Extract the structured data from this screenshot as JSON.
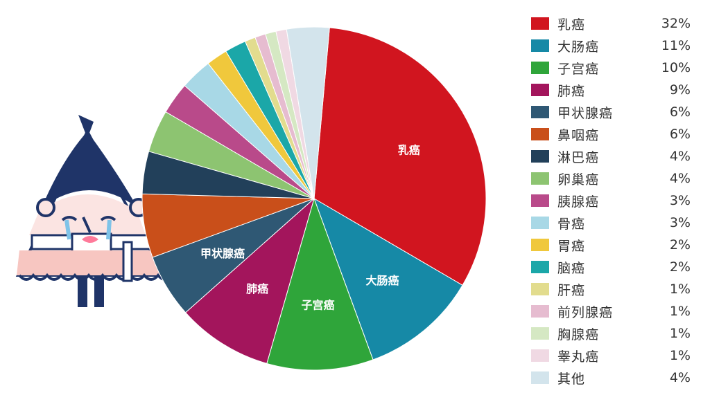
{
  "chart_data": {
    "type": "pie",
    "title": "",
    "slices": [
      {
        "label": "乳癌",
        "value": 32,
        "display": "32%",
        "color": "#d1151f",
        "show_label": true
      },
      {
        "label": "大肠癌",
        "value": 11,
        "display": "11%",
        "color": "#1689a6",
        "show_label": true
      },
      {
        "label": "子宫癌",
        "value": 10,
        "display": "10%",
        "color": "#2fa53a",
        "show_label": true
      },
      {
        "label": "肺癌",
        "value": 9,
        "display": "9%",
        "color": "#a3155c",
        "show_label": true
      },
      {
        "label": "甲状腺癌",
        "value": 6,
        "display": "6%",
        "color": "#2f5874",
        "show_label": true
      },
      {
        "label": "鼻咽癌",
        "value": 6,
        "display": "6%",
        "color": "#c94f1a",
        "show_label": false
      },
      {
        "label": "淋巴癌",
        "value": 4,
        "display": "4%",
        "color": "#22405a",
        "show_label": false
      },
      {
        "label": "卵巢癌",
        "value": 4,
        "display": "4%",
        "color": "#8dc471",
        "show_label": false
      },
      {
        "label": "胰腺癌",
        "value": 3,
        "display": "3%",
        "color": "#b94a8a",
        "show_label": false
      },
      {
        "label": "骨癌",
        "value": 3,
        "display": "3%",
        "color": "#a8d8e6",
        "show_label": false
      },
      {
        "label": "胃癌",
        "value": 2,
        "display": "2%",
        "color": "#f0c83c",
        "show_label": false
      },
      {
        "label": "脑癌",
        "value": 2,
        "display": "2%",
        "color": "#1ba7a8",
        "show_label": false
      },
      {
        "label": "肝癌",
        "value": 1,
        "display": "1%",
        "color": "#e2dc8e",
        "show_label": false
      },
      {
        "label": "前列腺癌",
        "value": 1,
        "display": "1%",
        "color": "#e6bcd0",
        "show_label": false
      },
      {
        "label": "胸腺癌",
        "value": 1,
        "display": "1%",
        "color": "#d5e8c3",
        "show_label": false
      },
      {
        "label": "睾丸癌",
        "value": 1,
        "display": "1%",
        "color": "#f0d9e3",
        "show_label": false
      },
      {
        "label": "其他",
        "value": 4,
        "display": "4%",
        "color": "#d3e4ec",
        "show_label": false
      }
    ],
    "legend_position": "right"
  }
}
